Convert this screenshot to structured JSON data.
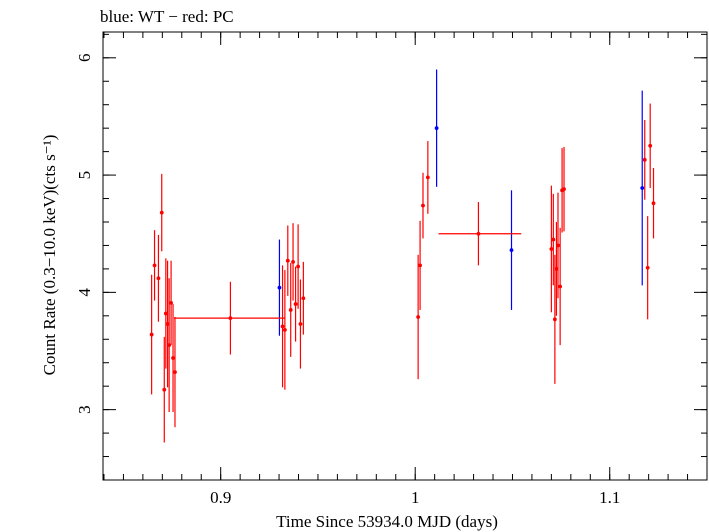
{
  "chart_data": {
    "type": "scatter",
    "title": "blue: WT − red: PC",
    "xlabel": "Time Since 53934.0 MJD (days)",
    "ylabel": "Count Rate (0.3−10.0 keV)(cts s⁻¹)",
    "xlim": [
      0.8395,
      1.15
    ],
    "ylim": [
      2.4,
      6.22
    ],
    "x_ticks": [
      {
        "value": 0.9,
        "label": "0.9"
      },
      {
        "value": 1.0,
        "label": "1"
      },
      {
        "value": 1.1,
        "label": "1.1"
      }
    ],
    "y_ticks": [
      {
        "value": 3,
        "label": "3"
      },
      {
        "value": 4,
        "label": "4"
      },
      {
        "value": 5,
        "label": "5"
      },
      {
        "value": 6,
        "label": "6"
      }
    ],
    "x_minor_step": 0.01,
    "y_minor_step": 0.2,
    "series": [
      {
        "name": "WT",
        "color": "#0000ff",
        "points": [
          {
            "x": 0.9302,
            "y": 4.04,
            "ylo": 3.63,
            "yhi": 4.45
          },
          {
            "x": 1.011,
            "y": 5.4,
            "ylo": 4.9,
            "yhi": 5.9
          },
          {
            "x": 1.0495,
            "y": 4.36,
            "ylo": 3.85,
            "yhi": 4.87
          },
          {
            "x": 1.1167,
            "y": 4.89,
            "ylo": 4.06,
            "yhi": 5.72
          }
        ]
      },
      {
        "name": "PC",
        "color": "#ff0000",
        "points": [
          {
            "x": 0.8645,
            "y": 3.64,
            "ylo": 3.13,
            "yhi": 4.15
          },
          {
            "x": 0.866,
            "y": 4.23,
            "ylo": 3.93,
            "yhi": 4.53
          },
          {
            "x": 0.868,
            "y": 4.12,
            "ylo": 3.75,
            "yhi": 4.49
          },
          {
            "x": 0.8697,
            "y": 4.68,
            "ylo": 4.35,
            "yhi": 5.01
          },
          {
            "x": 0.871,
            "y": 3.17,
            "ylo": 2.72,
            "yhi": 3.62
          },
          {
            "x": 0.8718,
            "y": 3.82,
            "ylo": 3.35,
            "yhi": 4.29
          },
          {
            "x": 0.8727,
            "y": 3.73,
            "ylo": 3.19,
            "yhi": 4.27
          },
          {
            "x": 0.8735,
            "y": 3.55,
            "ylo": 2.98,
            "yhi": 4.12
          },
          {
            "x": 0.8745,
            "y": 3.91,
            "ylo": 3.55,
            "yhi": 4.27
          },
          {
            "x": 0.8755,
            "y": 3.44,
            "ylo": 2.98,
            "yhi": 3.9
          },
          {
            "x": 0.8765,
            "y": 3.32,
            "ylo": 2.85,
            "yhi": 3.79
          },
          {
            "x": 0.905,
            "y": 3.78,
            "ylo": 3.47,
            "yhi": 4.09,
            "xlo": 0.876,
            "xhi": 0.933
          },
          {
            "x": 0.9318,
            "y": 3.71,
            "ylo": 3.19,
            "yhi": 4.23
          },
          {
            "x": 0.933,
            "y": 3.68,
            "ylo": 3.17,
            "yhi": 4.19
          },
          {
            "x": 0.9345,
            "y": 4.27,
            "ylo": 3.97,
            "yhi": 4.57
          },
          {
            "x": 0.936,
            "y": 3.85,
            "ylo": 3.45,
            "yhi": 4.25
          },
          {
            "x": 0.9372,
            "y": 4.26,
            "ylo": 3.93,
            "yhi": 4.59
          },
          {
            "x": 0.9385,
            "y": 3.9,
            "ylo": 3.58,
            "yhi": 4.22
          },
          {
            "x": 0.9398,
            "y": 4.22,
            "ylo": 3.86,
            "yhi": 4.58
          },
          {
            "x": 0.941,
            "y": 3.73,
            "ylo": 3.35,
            "yhi": 4.11
          },
          {
            "x": 0.9425,
            "y": 3.95,
            "ylo": 3.64,
            "yhi": 4.26
          },
          {
            "x": 1.0015,
            "y": 3.79,
            "ylo": 3.26,
            "yhi": 4.32
          },
          {
            "x": 1.0025,
            "y": 4.23,
            "ylo": 3.85,
            "yhi": 4.61
          },
          {
            "x": 1.004,
            "y": 4.74,
            "ylo": 4.46,
            "yhi": 5.02
          },
          {
            "x": 1.0065,
            "y": 4.98,
            "ylo": 4.67,
            "yhi": 5.29
          },
          {
            "x": 1.0325,
            "y": 4.5,
            "ylo": 4.23,
            "yhi": 4.77,
            "xlo": 1.012,
            "xhi": 1.0545
          },
          {
            "x": 1.07,
            "y": 4.37,
            "ylo": 3.83,
            "yhi": 4.91
          },
          {
            "x": 1.071,
            "y": 4.45,
            "ylo": 4.06,
            "yhi": 4.84
          },
          {
            "x": 1.0718,
            "y": 3.77,
            "ylo": 3.22,
            "yhi": 4.32
          },
          {
            "x": 1.0726,
            "y": 4.2,
            "ylo": 3.8,
            "yhi": 4.6
          },
          {
            "x": 1.0734,
            "y": 4.4,
            "ylo": 3.95,
            "yhi": 4.85
          },
          {
            "x": 1.0745,
            "y": 4.05,
            "ylo": 3.55,
            "yhi": 4.55
          },
          {
            "x": 1.0755,
            "y": 4.87,
            "ylo": 4.51,
            "yhi": 5.23
          },
          {
            "x": 1.0765,
            "y": 4.88,
            "ylo": 4.52,
            "yhi": 5.24
          },
          {
            "x": 1.118,
            "y": 5.13,
            "ylo": 4.79,
            "yhi": 5.47
          },
          {
            "x": 1.1195,
            "y": 4.21,
            "ylo": 3.77,
            "yhi": 4.65
          },
          {
            "x": 1.1208,
            "y": 5.25,
            "ylo": 4.89,
            "yhi": 5.61
          },
          {
            "x": 1.1225,
            "y": 4.76,
            "ylo": 4.46,
            "yhi": 5.06
          }
        ]
      }
    ]
  }
}
